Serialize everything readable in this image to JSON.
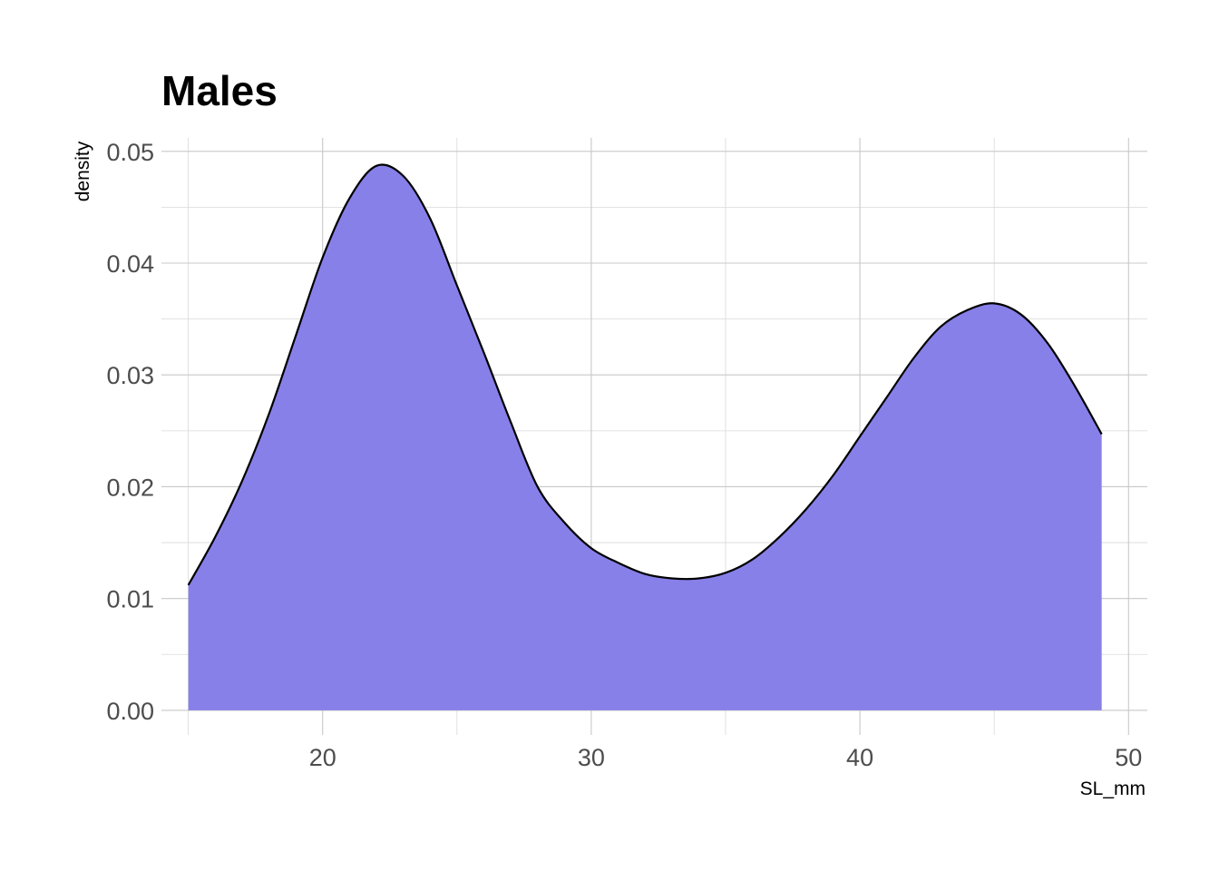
{
  "chart_data": {
    "type": "area",
    "subtype": "density",
    "title": "Males",
    "xlabel": "SL_mm",
    "ylabel": "density",
    "xlim": [
      14,
      50.7
    ],
    "ylim": [
      -0.0022,
      0.0512
    ],
    "x_ticks": [
      20,
      30,
      40,
      50
    ],
    "x_tick_labels": [
      "20",
      "30",
      "40",
      "50"
    ],
    "y_ticks": [
      0,
      0.01,
      0.02,
      0.03,
      0.04,
      0.05
    ],
    "y_tick_labels": [
      "0.00",
      "0.01",
      "0.02",
      "0.03",
      "0.04",
      "0.05"
    ],
    "grid": true,
    "legend": "none",
    "fill_color": "#8880E9",
    "outline_color": "#000000",
    "series": [
      {
        "x": [
          15,
          16,
          17,
          18,
          19,
          20,
          21,
          22,
          23,
          24,
          25,
          26,
          27,
          28,
          29,
          30,
          31,
          32,
          33,
          34,
          35,
          36,
          37,
          38,
          39,
          40,
          41,
          42,
          43,
          44,
          45,
          46,
          47,
          48,
          49
        ],
        "y": [
          0.0112,
          0.0155,
          0.0205,
          0.0265,
          0.0335,
          0.0405,
          0.0458,
          0.0487,
          0.0478,
          0.044,
          0.038,
          0.032,
          0.0258,
          0.02,
          0.0168,
          0.0145,
          0.0132,
          0.0122,
          0.0118,
          0.0118,
          0.0123,
          0.0135,
          0.0155,
          0.018,
          0.021,
          0.0245,
          0.028,
          0.0315,
          0.0343,
          0.0358,
          0.0364,
          0.0354,
          0.0328,
          0.029,
          0.0247
        ]
      }
    ]
  }
}
